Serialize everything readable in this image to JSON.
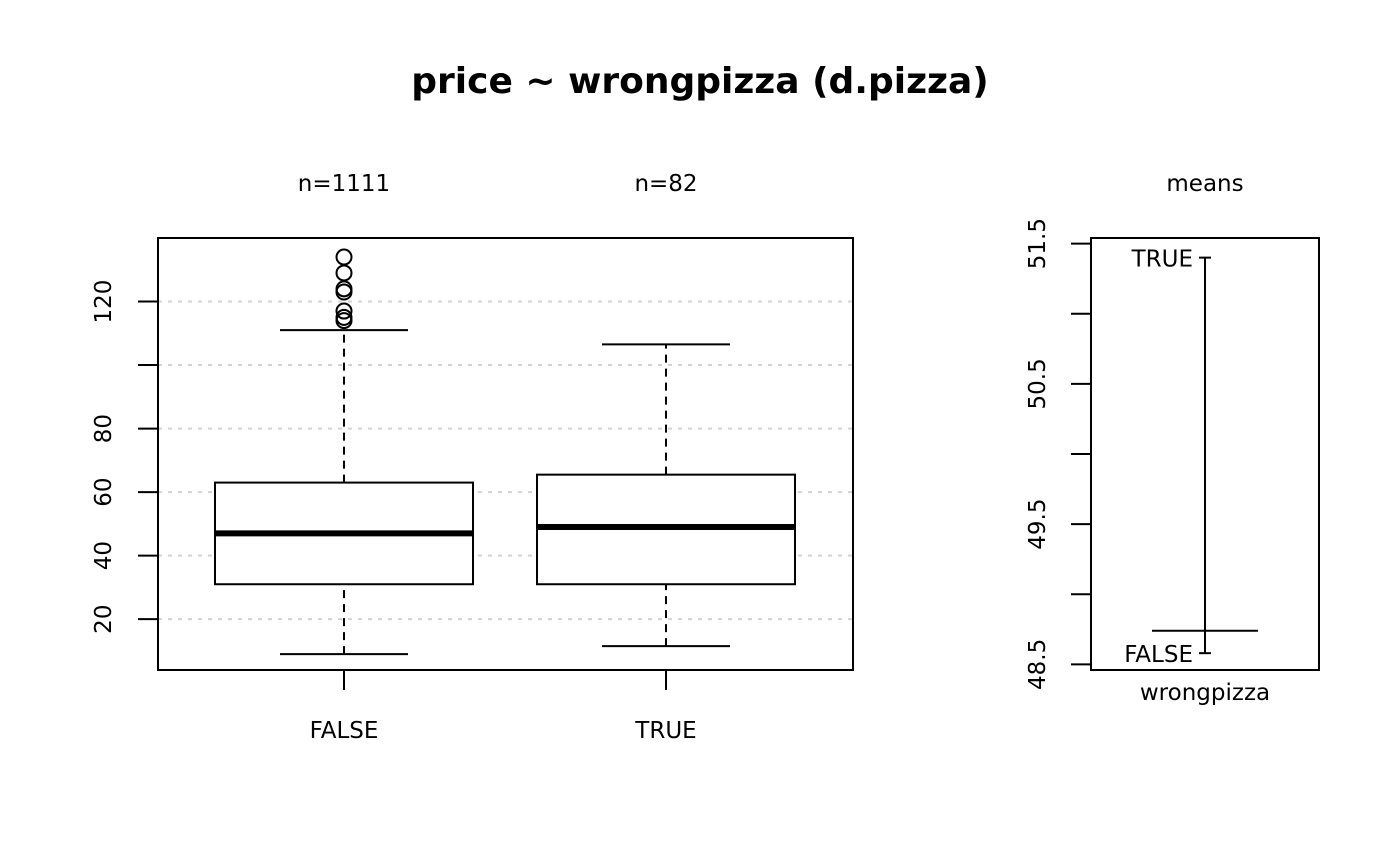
{
  "chart_data": [
    {
      "type": "box",
      "title": "price ~ wrongpizza (d.pizza)",
      "xlabel": "",
      "ylabel": "",
      "ylim": [
        4,
        140
      ],
      "yticks": [
        20,
        40,
        60,
        80,
        100,
        120
      ],
      "ytick_labels": [
        "20",
        "40",
        "60",
        "80",
        "",
        "120"
      ],
      "grid": "horizontal dotted",
      "categories": [
        "FALSE",
        "TRUE"
      ],
      "group_sizes": [
        "n=1111",
        "n=82"
      ],
      "boxes": [
        {
          "name": "FALSE",
          "whisker_low": 9,
          "q1": 31,
          "median": 47,
          "q3": 63,
          "whisker_high": 111,
          "outliers": [
            114,
            115,
            117,
            123,
            124,
            129,
            134
          ]
        },
        {
          "name": "TRUE",
          "whisker_low": 11.5,
          "q1": 31,
          "median": 49,
          "q3": 65.5,
          "whisker_high": 106.5,
          "outliers": []
        }
      ]
    },
    {
      "type": "means",
      "title": "means",
      "xlabel": "wrongpizza",
      "ylim": [
        48.46,
        51.54
      ],
      "yticks": [
        48.5,
        49.0,
        49.5,
        50.0,
        50.5,
        51.0,
        51.5
      ],
      "ytick_labels": [
        "48.5",
        "",
        "49.5",
        "",
        "50.5",
        "",
        "51.5"
      ],
      "points": [
        {
          "label": "FALSE",
          "value": 48.58
        },
        {
          "label": "TRUE",
          "value": 51.4
        }
      ],
      "mean_line": 48.74
    }
  ]
}
